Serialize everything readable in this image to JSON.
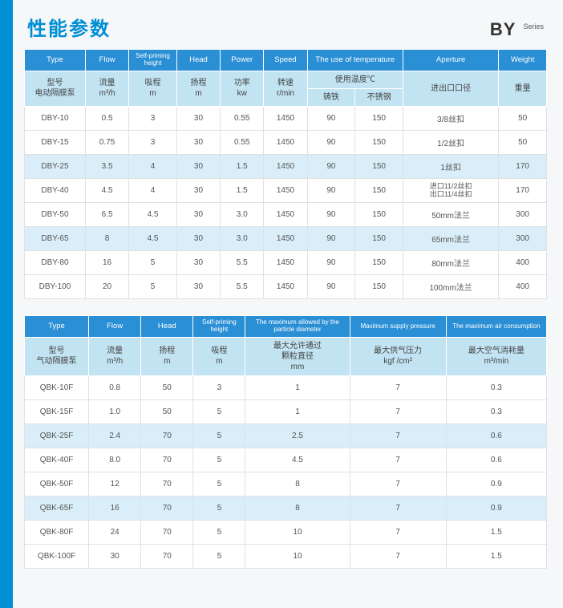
{
  "header": {
    "title": "性能参数",
    "brand": "BY",
    "series": "Series"
  },
  "table1": {
    "h1": {
      "type": "Type",
      "flow": "Flow",
      "self_priming": "Self-priming height",
      "head": "Head",
      "power": "Power",
      "speed": "Speed",
      "temp": "The use of temperature",
      "aperture": "Aperture",
      "weight": "Weight"
    },
    "h2": {
      "type1": "型号",
      "type2": "电动隔膜泵",
      "flow1": "流量",
      "flow2": "m³/h",
      "sp1": "吸程",
      "sp2": "m",
      "head1": "扬程",
      "head2": "m",
      "power1": "功率",
      "power2": "kw",
      "speed1": "转速",
      "speed2": "r/min",
      "temp": "使用温度℃",
      "t_iron": "铸铁",
      "t_ss": "不锈钢",
      "aperture": "进出口口径",
      "weight": "重量"
    },
    "rows": [
      {
        "c0": "DBY-10",
        "c1": "0.5",
        "c2": "3",
        "c3": "30",
        "c4": "0.55",
        "c5": "1450",
        "c6": "90",
        "c7": "150",
        "c8": "3/8丝扣",
        "c9": "50"
      },
      {
        "c0": "DBY-15",
        "c1": "0.75",
        "c2": "3",
        "c3": "30",
        "c4": "0.55",
        "c5": "1450",
        "c6": "90",
        "c7": "150",
        "c8": "1/2丝扣",
        "c9": "50"
      },
      {
        "c0": "DBY-25",
        "c1": "3.5",
        "c2": "4",
        "c3": "30",
        "c4": "1.5",
        "c5": "1450",
        "c6": "90",
        "c7": "150",
        "c8": "1丝扣",
        "c9": "170"
      },
      {
        "c0": "DBY-40",
        "c1": "4.5",
        "c2": "4",
        "c3": "30",
        "c4": "1.5",
        "c5": "1450",
        "c6": "90",
        "c7": "150",
        "c8": "进口11/2丝扣 出口11/4丝扣",
        "c9": "170"
      },
      {
        "c0": "DBY-50",
        "c1": "6.5",
        "c2": "4.5",
        "c3": "30",
        "c4": "3.0",
        "c5": "1450",
        "c6": "90",
        "c7": "150",
        "c8": "50mm法兰",
        "c9": "300"
      },
      {
        "c0": "DBY-65",
        "c1": "8",
        "c2": "4.5",
        "c3": "30",
        "c4": "3.0",
        "c5": "1450",
        "c6": "90",
        "c7": "150",
        "c8": "65mm法兰",
        "c9": "300"
      },
      {
        "c0": "DBY-80",
        "c1": "16",
        "c2": "5",
        "c3": "30",
        "c4": "5.5",
        "c5": "1450",
        "c6": "90",
        "c7": "150",
        "c8": "80mm法兰",
        "c9": "400"
      },
      {
        "c0": "DBY-100",
        "c1": "20",
        "c2": "5",
        "c3": "30",
        "c4": "5.5",
        "c5": "1450",
        "c6": "90",
        "c7": "150",
        "c8": "100mm法兰",
        "c9": "400"
      }
    ]
  },
  "table2": {
    "h1": {
      "type": "Type",
      "flow": "Flow",
      "head": "Head",
      "self_priming": "Self-priming height",
      "particle": "The maximum allowed by the particle diameter",
      "pressure": "Maximum supply pressure",
      "air": "The maximum air consumption"
    },
    "h2": {
      "type1": "型号",
      "type2": "气动隔膜泵",
      "flow1": "流量",
      "flow2": "m³/h",
      "head1": "扬程",
      "head2": "m",
      "sp1": "吸程",
      "sp2": "m",
      "part1": "最大允许通过",
      "part2": "颗粒直径",
      "part3": "mm",
      "pres1": "最大供气压力",
      "pres2": "kgf /cm²",
      "air1": "最大空气消耗量",
      "air2": "m³/min"
    },
    "rows": [
      {
        "c0": "QBK-10F",
        "c1": "0.8",
        "c2": "50",
        "c3": "3",
        "c4": "1",
        "c5": "7",
        "c6": "0.3"
      },
      {
        "c0": "QBK-15F",
        "c1": "1.0",
        "c2": "50",
        "c3": "5",
        "c4": "1",
        "c5": "7",
        "c6": "0.3"
      },
      {
        "c0": "QBK-25F",
        "c1": "2.4",
        "c2": "70",
        "c3": "5",
        "c4": "2.5",
        "c5": "7",
        "c6": "0.6"
      },
      {
        "c0": "QBK-40F",
        "c1": "8.0",
        "c2": "70",
        "c3": "5",
        "c4": "4.5",
        "c5": "7",
        "c6": "0.6"
      },
      {
        "c0": "QBK-50F",
        "c1": "12",
        "c2": "70",
        "c3": "5",
        "c4": "8",
        "c5": "7",
        "c6": "0.9"
      },
      {
        "c0": "QBK-65F",
        "c1": "16",
        "c2": "70",
        "c3": "5",
        "c4": "8",
        "c5": "7",
        "c6": "0.9"
      },
      {
        "c0": "QBK-80F",
        "c1": "24",
        "c2": "70",
        "c3": "5",
        "c4": "10",
        "c5": "7",
        "c6": "1.5"
      },
      {
        "c0": "QBK-100F",
        "c1": "30",
        "c2": "70",
        "c3": "5",
        "c4": "10",
        "c5": "7",
        "c6": "1.5"
      }
    ]
  },
  "style": {
    "colors": {
      "accent": "#008fd5",
      "header_blue": "#2a8fd5",
      "header_light": "#c2e3f2",
      "alt_row": "#d9eef8",
      "border": "#e0e0e0",
      "text": "#555"
    }
  }
}
